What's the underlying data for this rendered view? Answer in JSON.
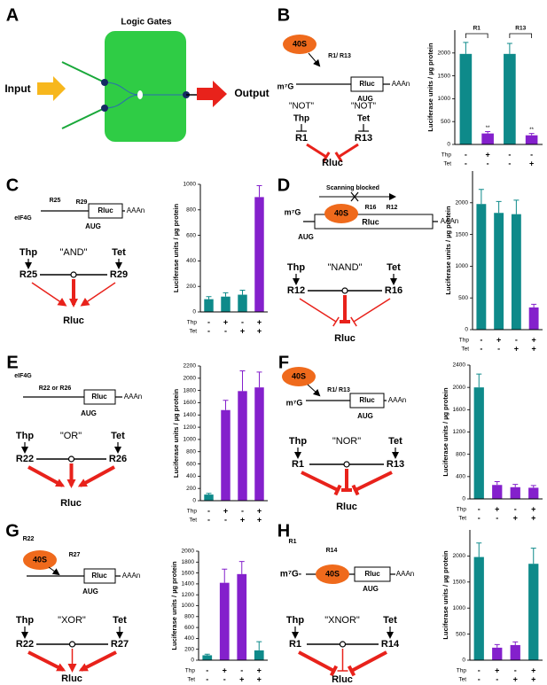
{
  "panels": [
    {
      "label": "A",
      "texts": [
        "Logic Gates",
        "Input",
        "Output"
      ]
    },
    {
      "label": "B",
      "texts": [
        "40S",
        "R1/ R13",
        "m⁷G",
        "Rluc",
        "AAAn",
        "AUG",
        "\"NOT\"",
        "Thp",
        "\"NOT\"",
        "Tet",
        "R1",
        "R13",
        "Rluc"
      ]
    },
    {
      "label": "C",
      "texts": [
        "eIF4G",
        "R25",
        "R29",
        "Rluc",
        "AAAn",
        "AUG",
        "Thp",
        "\"AND\"",
        "Tet",
        "R25",
        "R29",
        "Rluc"
      ]
    },
    {
      "label": "D",
      "texts": [
        "Scanning blocked",
        "m⁷G",
        "40S",
        "R16",
        "R12",
        "Rluc",
        "AAAn",
        "AUG",
        "Thp",
        "\"NAND\"",
        "Tet",
        "R12",
        "R16",
        "Rluc"
      ]
    },
    {
      "label": "E",
      "texts": [
        "eIF4G",
        "R22 or R26",
        "Rluc",
        "AAAn",
        "AUG",
        "Thp",
        "\"OR\"",
        "Tet",
        "R22",
        "R26",
        "Rluc"
      ]
    },
    {
      "label": "F",
      "texts": [
        "40S",
        "R1/ R13",
        "m⁷G",
        "Rluc",
        "AAAn",
        "AUG",
        "Thp",
        "\"NOR\"",
        "Tet",
        "R1",
        "R13",
        "Rluc"
      ]
    },
    {
      "label": "G",
      "texts": [
        "R22",
        "R27",
        "40S",
        "Rluc",
        "AAAn",
        "AUG",
        "Thp",
        "\"XOR\"",
        "Tet",
        "R22",
        "R27",
        "Rluc"
      ]
    },
    {
      "label": "H",
      "texts": [
        "R1",
        "R14",
        "m⁷G-",
        "40S",
        "Rluc",
        "AAAn",
        "AUG",
        "Thp",
        "\"XNOR\"",
        "Tet",
        "R1",
        "R14",
        "Rluc"
      ]
    }
  ],
  "chart_data": [
    {
      "type": "bar",
      "y_label": "Luciferase units / µg protein",
      "condition_rows": [
        {
          "name": "Thp",
          "labels": [
            "-",
            "+",
            "-",
            "-"
          ]
        },
        {
          "name": "Tet",
          "labels": [
            "-",
            "-",
            "-",
            "+"
          ]
        }
      ],
      "values": [
        1980,
        240,
        1980,
        200
      ],
      "errors": [
        250,
        40,
        230,
        40
      ],
      "colors": [
        "#0e8a8a",
        "#8420cc",
        "#0e8a8a",
        "#8420cc"
      ],
      "annotations": [
        "R1",
        "R13"
      ],
      "significance": [
        null,
        "**",
        null,
        "**"
      ],
      "ylim": [
        0,
        2500
      ],
      "yticks": [
        0,
        500,
        1000,
        1500,
        2000
      ]
    },
    {
      "type": "bar",
      "y_label": "Luciferase units / µg protein",
      "condition_rows": [
        {
          "name": "Thp",
          "labels": [
            "-",
            "+",
            "-",
            "+"
          ]
        },
        {
          "name": "Tet",
          "labels": [
            "-",
            "-",
            "+",
            "+"
          ]
        }
      ],
      "values": [
        100,
        120,
        135,
        900
      ],
      "errors": [
        20,
        30,
        35,
        90
      ],
      "colors": [
        "#0e8a8a",
        "#0e8a8a",
        "#0e8a8a",
        "#8420cc"
      ],
      "ylim": [
        0,
        1000
      ],
      "yticks": [
        0,
        200,
        400,
        600,
        800,
        1000
      ]
    },
    {
      "type": "bar",
      "y_label": "Luciferase units / µg protein",
      "condition_rows": [
        {
          "name": "Thp",
          "labels": [
            "-",
            "+",
            "-",
            "+"
          ]
        },
        {
          "name": "Tet",
          "labels": [
            "-",
            "-",
            "+",
            "+"
          ]
        }
      ],
      "values": [
        1980,
        1840,
        1820,
        350
      ],
      "errors": [
        230,
        180,
        220,
        50
      ],
      "colors": [
        "#0e8a8a",
        "#0e8a8a",
        "#0e8a8a",
        "#8420cc"
      ],
      "ylim": [
        0,
        2500
      ],
      "yticks": [
        0,
        500,
        1000,
        1500,
        2000
      ]
    },
    {
      "type": "bar",
      "y_label": "Luciferase units / µg protein",
      "condition_rows": [
        {
          "name": "Thp",
          "labels": [
            "-",
            "+",
            "-",
            "+"
          ]
        },
        {
          "name": "Tet",
          "labels": [
            "-",
            "-",
            "+",
            "+"
          ]
        }
      ],
      "values": [
        100,
        1480,
        1790,
        1850
      ],
      "errors": [
        20,
        160,
        330,
        250
      ],
      "colors": [
        "#0e8a8a",
        "#8420cc",
        "#8420cc",
        "#8420cc"
      ],
      "ylim": [
        0,
        2200
      ],
      "yticks": [
        0,
        200,
        400,
        600,
        800,
        1000,
        1200,
        1400,
        1600,
        1800,
        2000,
        2200
      ]
    },
    {
      "type": "bar",
      "y_label": "Luciferase units / µg protein",
      "condition_rows": [
        {
          "name": "Thp",
          "labels": [
            "-",
            "+",
            "-",
            "+"
          ]
        },
        {
          "name": "Tet",
          "labels": [
            "-",
            "-",
            "+",
            "+"
          ]
        }
      ],
      "values": [
        2000,
        250,
        210,
        200
      ],
      "errors": [
        240,
        60,
        50,
        40
      ],
      "colors": [
        "#0e8a8a",
        "#8420cc",
        "#8420cc",
        "#8420cc"
      ],
      "ylim": [
        0,
        2400
      ],
      "yticks": [
        0,
        400,
        800,
        1200,
        1600,
        2000,
        2400
      ]
    },
    {
      "type": "bar",
      "y_label": "Luciferase units / µg protein",
      "condition_rows": [
        {
          "name": "Thp",
          "labels": [
            "-",
            "+",
            "-",
            "+"
          ]
        },
        {
          "name": "Tet",
          "labels": [
            "-",
            "-",
            "+",
            "+"
          ]
        }
      ],
      "values": [
        90,
        1420,
        1580,
        180
      ],
      "errors": [
        20,
        250,
        230,
        160
      ],
      "colors": [
        "#0e8a8a",
        "#8420cc",
        "#8420cc",
        "#0e8a8a"
      ],
      "ylim": [
        0,
        2000
      ],
      "yticks": [
        0,
        200,
        400,
        600,
        800,
        1000,
        1200,
        1400,
        1600,
        1800,
        2000
      ]
    },
    {
      "type": "bar",
      "y_label": "Luciferase units / µg protein",
      "condition_rows": [
        {
          "name": "Thp",
          "labels": [
            "-",
            "+",
            "-",
            "+"
          ]
        },
        {
          "name": "Tet",
          "labels": [
            "-",
            "-",
            "+",
            "+"
          ]
        }
      ],
      "values": [
        1980,
        240,
        290,
        1850
      ],
      "errors": [
        270,
        60,
        60,
        300
      ],
      "colors": [
        "#0e8a8a",
        "#8420cc",
        "#8420cc",
        "#0e8a8a"
      ],
      "ylim": [
        0,
        2500
      ],
      "yticks": [
        0,
        500,
        1000,
        1500,
        2000
      ]
    }
  ]
}
